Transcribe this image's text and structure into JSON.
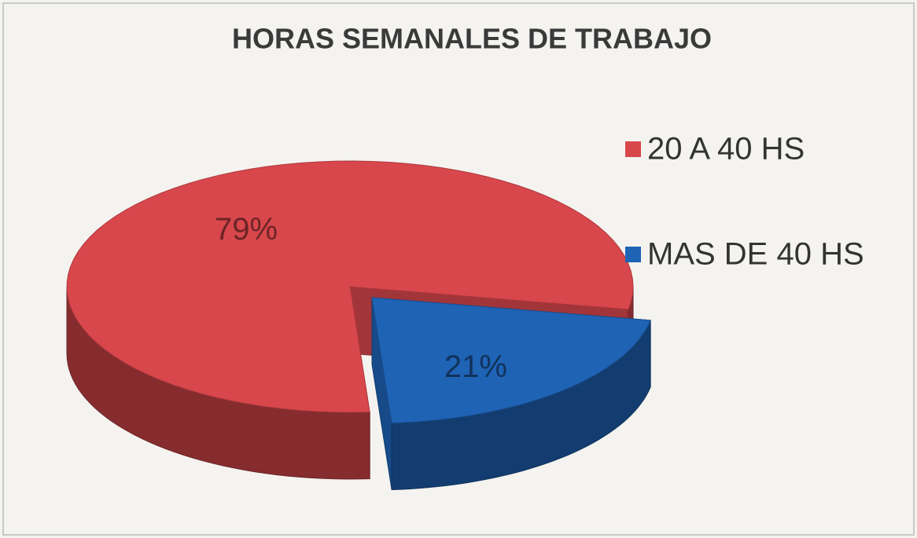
{
  "chart_data": {
    "type": "pie",
    "title": "HORAS SEMANALES DE TRABAJO",
    "categories": [
      "20 A 40 HS",
      "MAS DE 40 HS"
    ],
    "values": [
      79,
      21
    ],
    "value_labels": [
      "79%",
      "21%"
    ],
    "colors": [
      "#d8474c",
      "#1f63b5"
    ],
    "legend": "right"
  }
}
